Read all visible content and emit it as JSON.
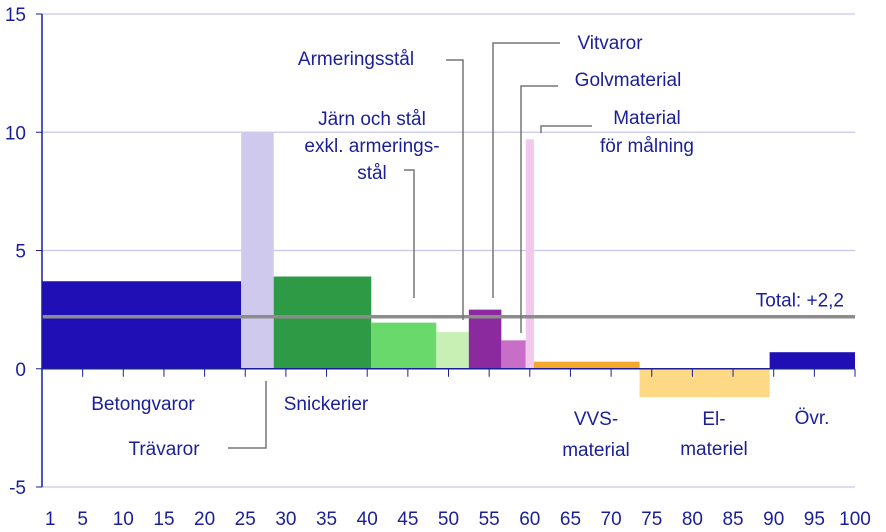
{
  "chart_data": {
    "type": "bar",
    "variable_width": true,
    "xlim": [
      0,
      100
    ],
    "ylim": [
      -5,
      15
    ],
    "x_ticks": [
      1,
      5,
      10,
      15,
      20,
      25,
      30,
      35,
      40,
      45,
      50,
      55,
      60,
      65,
      70,
      75,
      80,
      85,
      90,
      95,
      100
    ],
    "y_ticks": [
      -5,
      0,
      5,
      10,
      15
    ],
    "grid": true,
    "bars": [
      {
        "name": "Betongvaror",
        "x0": 0,
        "x1": 24.5,
        "value": 3.7,
        "color": "#1f0fb4"
      },
      {
        "name": "Trävaror",
        "x0": 24.5,
        "x1": 28.5,
        "value": 10.0,
        "color": "#cfc9ee"
      },
      {
        "name": "Snickerier",
        "x0": 28.5,
        "x1": 40.5,
        "value": 3.9,
        "color": "#2f9a45"
      },
      {
        "name": "Järn och stål exkl. armeringsstål",
        "x0": 40.5,
        "x1": 48.5,
        "value": 1.95,
        "color": "#6ad96b"
      },
      {
        "name": "Armeringsstål",
        "x0": 48.5,
        "x1": 52.5,
        "value": 1.55,
        "color": "#c8f0b5"
      },
      {
        "name": "Vitvaror",
        "x0": 52.5,
        "x1": 56.5,
        "value": 2.5,
        "color": "#8b2a9e"
      },
      {
        "name": "Golvmaterial",
        "x0": 56.5,
        "x1": 59.5,
        "value": 1.2,
        "color": "#c86ec9"
      },
      {
        "name": "Material för målning",
        "x0": 59.5,
        "x1": 60.5,
        "value": 9.7,
        "color": "#f2c8ec"
      },
      {
        "name": "VVS-material",
        "x0": 60.5,
        "x1": 73.5,
        "value": 0.3,
        "color": "#f5a82c"
      },
      {
        "name": "El-materiel",
        "x0": 73.5,
        "x1": 89.5,
        "value": -1.2,
        "color": "#fdd985"
      },
      {
        "name": "Övr.",
        "x0": 89.5,
        "x1": 100,
        "value": 0.7,
        "color": "#1f0fb4"
      }
    ],
    "total": {
      "label": "Total: +2,2",
      "value": 2.2,
      "color": "#8c8c8c"
    }
  },
  "labels": {
    "betongvaror": "Betongvaror",
    "travaror": "Trävaror",
    "snickerier": "Snickerier",
    "jarn_line1": "Järn och stål",
    "jarn_line2": "exkl. armerings-",
    "jarn_line3": "stål",
    "armeringsstal": "Armeringsstål",
    "vitvaror": "Vitvaror",
    "golvmaterial": "Golvmaterial",
    "malning_line1": "Material",
    "malning_line2": "för målning",
    "vvs_line1": "VVS-",
    "vvs_line2": "material",
    "el_line1": "El-",
    "el_line2": "materiel",
    "ovr": "Övr."
  },
  "colors": {
    "label_text": "#1a1f99",
    "tick_text": "#1a1f99",
    "grid": "#c9c6e6",
    "leader": "#777777",
    "axis": "#1a1f99"
  }
}
